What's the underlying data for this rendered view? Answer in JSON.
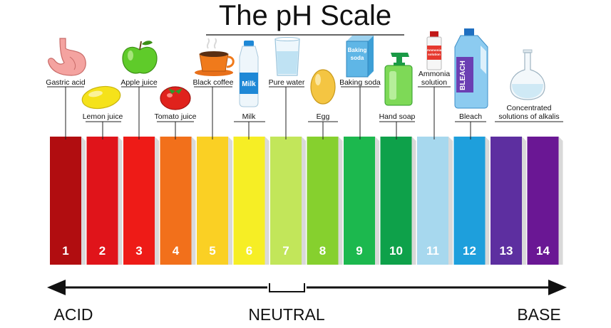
{
  "title": "The pH Scale",
  "scale": [
    {
      "ph": "1",
      "color": "#b10d10",
      "item": "Gastric acid",
      "icon": "stomach-icon"
    },
    {
      "ph": "2",
      "color": "#e0141a",
      "item": "Lemon juice",
      "icon": "lemon-icon"
    },
    {
      "ph": "3",
      "color": "#ee1b17",
      "item": "Apple juice",
      "icon": "apple-icon"
    },
    {
      "ph": "4",
      "color": "#f2701b",
      "item": "Tomato juice",
      "icon": "tomato-icon"
    },
    {
      "ph": "5",
      "color": "#fad024",
      "item": "Black coffee",
      "icon": "coffee-cup-icon"
    },
    {
      "ph": "6",
      "color": "#f6ee25",
      "item": "Milk",
      "icon": "milk-bottle-icon"
    },
    {
      "ph": "7",
      "color": "#c2e65a",
      "item": "Pure water",
      "icon": "water-glass-icon"
    },
    {
      "ph": "8",
      "color": "#86d02e",
      "item": "Egg",
      "icon": "egg-icon"
    },
    {
      "ph": "9",
      "color": "#1cb84e",
      "item": "Baking soda",
      "icon": "baking-soda-box-icon"
    },
    {
      "ph": "10",
      "color": "#0ea14a",
      "item": "Hand soap",
      "icon": "soap-dispenser-icon"
    },
    {
      "ph": "11",
      "color": "#a7d8ee",
      "item": "Ammonia solution",
      "icon": "ammonia-bottle-icon"
    },
    {
      "ph": "12",
      "color": "#1e9fdc",
      "item": "Bleach",
      "icon": "bleach-bottle-icon"
    },
    {
      "ph": "13",
      "color": "#5d2fa0",
      "item": "Concentrated solutions of alkalis",
      "icon": "flask-icon"
    },
    {
      "ph": "14",
      "color": "#6a1794",
      "item": "",
      "icon": ""
    }
  ],
  "icon_text": {
    "milk": "Milk",
    "baking_soda_line1": "Baking",
    "baking_soda_line2": "soda",
    "ammonia_line1": "Ammonia",
    "ammonia_line2": "solution",
    "bleach": "BLEACH"
  },
  "labels": {
    "gastric_acid": "Gastric acid",
    "lemon_juice": "Lemon juice",
    "apple_juice": "Apple juice",
    "tomato_juice": "Tomato juice",
    "black_coffee": "Black coffee",
    "milk": "Milk",
    "pure_water": "Pure water",
    "egg": "Egg",
    "baking_soda": "Baking soda",
    "hand_soap": "Hand soap",
    "ammonia_line1": "Ammonia",
    "ammonia_line2": "solution",
    "bleach": "Bleach",
    "alkalis_line1": "Concentrated",
    "alkalis_line2": "solutions of alkalis"
  },
  "axis": {
    "acid": "ACID",
    "neutral": "NEUTRAL",
    "base": "BASE"
  }
}
